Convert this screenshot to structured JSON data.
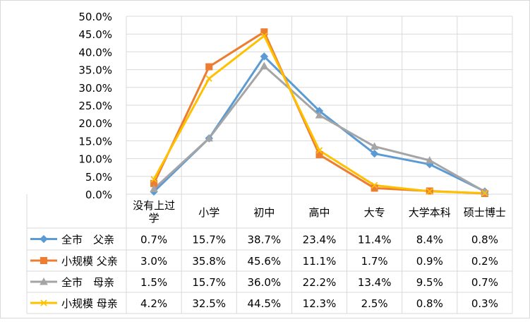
{
  "chart_data": {
    "type": "line",
    "title": "",
    "xlabel": "",
    "ylabel": "",
    "ylim": [
      0,
      50
    ],
    "y_tick_labels": [
      "50.0%",
      "45.0%",
      "40.0%",
      "35.0%",
      "30.0%",
      "25.0%",
      "20.0%",
      "15.0%",
      "10.0%",
      "5.0%",
      "0.0%"
    ],
    "categories": [
      "没有上过学",
      "小学",
      "初中",
      "高中",
      "大专",
      "大学本科",
      "硕士博士"
    ],
    "category_lines": [
      [
        "没有上过",
        "学"
      ],
      [
        "小学"
      ],
      [
        "初中"
      ],
      [
        "高中"
      ],
      [
        "大专"
      ],
      [
        "大学本科"
      ],
      [
        "硕士博士"
      ]
    ],
    "grid": true,
    "legend_placement": "data-table-below",
    "series": [
      {
        "name": "全市　父亲",
        "color": "#5b9bd5",
        "marker": "diamond",
        "values": [
          0.7,
          15.7,
          38.7,
          23.4,
          11.4,
          8.4,
          0.8
        ],
        "labels": [
          "0.7%",
          "15.7%",
          "38.7%",
          "23.4%",
          "11.4%",
          "8.4%",
          "0.8%"
        ]
      },
      {
        "name": "小规模 父亲",
        "color": "#ed7d31",
        "marker": "square",
        "values": [
          3.0,
          35.8,
          45.6,
          11.1,
          1.7,
          0.9,
          0.2
        ],
        "labels": [
          "3.0%",
          "35.8%",
          "45.6%",
          "11.1%",
          "1.7%",
          "0.9%",
          "0.2%"
        ]
      },
      {
        "name": "全市　母亲",
        "color": "#a5a5a5",
        "marker": "triangle",
        "values": [
          1.5,
          15.7,
          36.0,
          22.2,
          13.4,
          9.5,
          0.7
        ],
        "labels": [
          "1.5%",
          "15.7%",
          "36.0%",
          "22.2%",
          "13.4%",
          "9.5%",
          "0.7%"
        ]
      },
      {
        "name": "小规模 母亲",
        "color": "#ffc000",
        "marker": "x",
        "values": [
          4.2,
          32.5,
          44.5,
          12.3,
          2.5,
          0.8,
          0.3
        ],
        "labels": [
          "4.2%",
          "32.5%",
          "44.5%",
          "12.3%",
          "2.5%",
          "0.8%",
          "0.3%"
        ]
      }
    ]
  }
}
